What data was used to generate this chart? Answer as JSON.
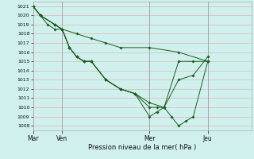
{
  "xlabel": "Pression niveau de la mer( hPa )",
  "ylim": [
    1007.5,
    1021.5
  ],
  "yticks": [
    1008,
    1009,
    1010,
    1011,
    1012,
    1013,
    1014,
    1015,
    1016,
    1017,
    1018,
    1019,
    1020,
    1021
  ],
  "xtick_labels": [
    "Mar",
    "Ven",
    "Mer",
    "Jeu"
  ],
  "xtick_positions": [
    0,
    16,
    64,
    96
  ],
  "xlim": [
    0,
    120
  ],
  "background_color": "#d0f0ee",
  "grid_color": "#e0a8a8",
  "line_color": "#1a5c1a",
  "marker": "D",
  "marker_size": 1.8,
  "lines": [
    [
      0,
      1021,
      4,
      1020,
      8,
      1019,
      12,
      1018.5,
      16,
      1018.5,
      24,
      1018,
      32,
      1017.5,
      40,
      1017,
      48,
      1016.5,
      64,
      1016.5,
      80,
      1016,
      96,
      1015
    ],
    [
      0,
      1021,
      4,
      1020,
      12,
      1019,
      16,
      1018.5,
      20,
      1016.5,
      24,
      1015.5,
      28,
      1015,
      32,
      1015,
      40,
      1013,
      48,
      1012,
      56,
      1011.5,
      64,
      1009,
      68,
      1009.5,
      72,
      1010,
      76,
      1009,
      80,
      1008,
      84,
      1008.5,
      88,
      1009,
      96,
      1015
    ],
    [
      0,
      1021,
      4,
      1020,
      12,
      1019,
      16,
      1018.5,
      20,
      1016.5,
      24,
      1015.5,
      28,
      1015,
      32,
      1015,
      40,
      1013,
      48,
      1012,
      56,
      1011.5,
      64,
      1010,
      68,
      1010,
      72,
      1010,
      80,
      1013,
      88,
      1013.5,
      96,
      1015.5
    ],
    [
      0,
      1021,
      4,
      1020,
      12,
      1019,
      16,
      1018.5,
      20,
      1016.5,
      24,
      1015.5,
      28,
      1015,
      32,
      1015,
      40,
      1013,
      48,
      1012,
      56,
      1011.5,
      64,
      1010.5,
      72,
      1010,
      80,
      1015,
      88,
      1015,
      96,
      1015
    ]
  ]
}
